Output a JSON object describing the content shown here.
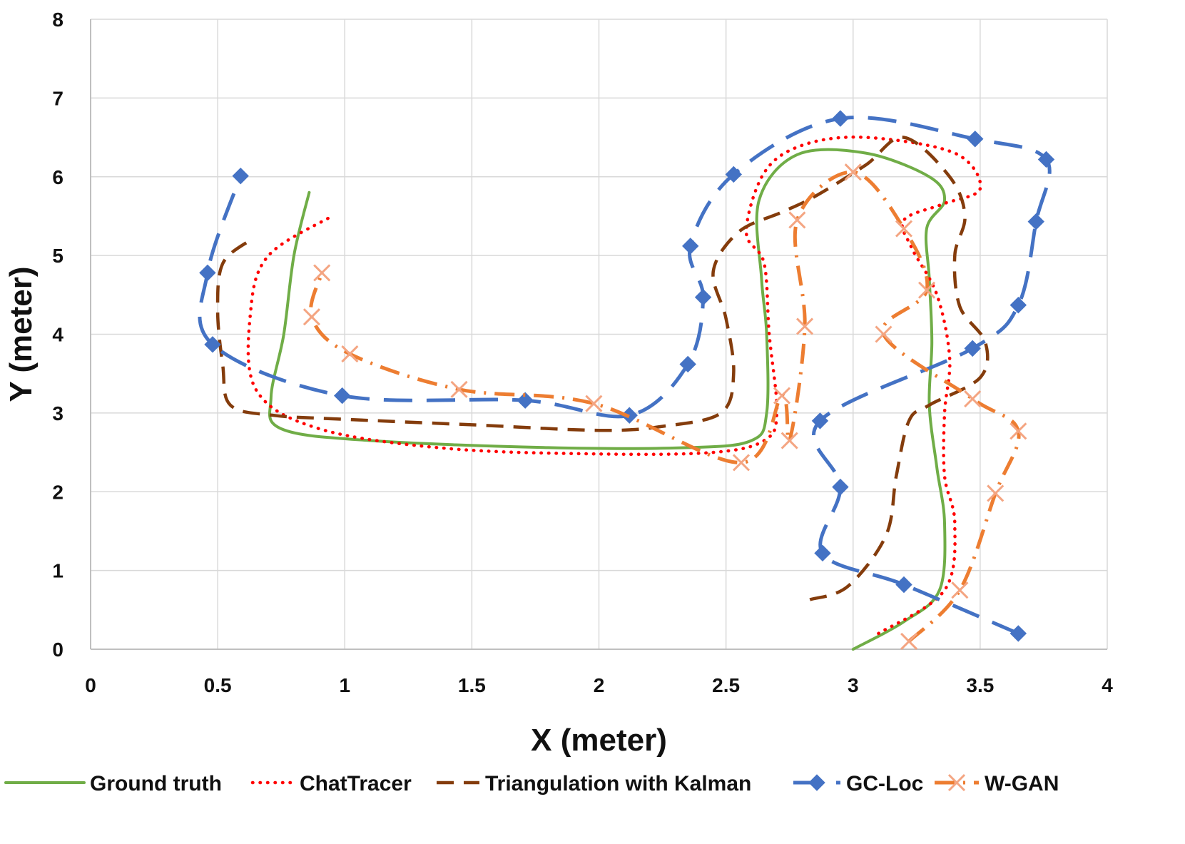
{
  "chart_data": {
    "type": "scatter",
    "title": "",
    "xlabel": "X (meter)",
    "ylabel": "Y (meter)",
    "xlim": [
      0,
      4
    ],
    "ylim": [
      0,
      8
    ],
    "x_ticks": [
      "0",
      "0.5",
      "1",
      "1.5",
      "2",
      "2.5",
      "3",
      "3.5",
      "4"
    ],
    "y_ticks": [
      "0",
      "1",
      "2",
      "3",
      "4",
      "5",
      "6",
      "7",
      "8"
    ],
    "grid": true,
    "legend_position": "bottom",
    "series": [
      {
        "name": "Ground truth",
        "color": "#70AD47",
        "style": "solid",
        "marker": "none",
        "points": [
          [
            3.0,
            0.0
          ],
          [
            3.2,
            0.35
          ],
          [
            3.34,
            0.75
          ],
          [
            3.36,
            1.6
          ],
          [
            3.33,
            2.3
          ],
          [
            3.3,
            3.1
          ],
          [
            3.31,
            3.9
          ],
          [
            3.3,
            4.7
          ],
          [
            3.29,
            5.35
          ],
          [
            3.36,
            5.7
          ],
          [
            3.3,
            6.0
          ],
          [
            3.05,
            6.3
          ],
          [
            2.78,
            6.28
          ],
          [
            2.63,
            5.7
          ],
          [
            2.64,
            4.7
          ],
          [
            2.66,
            4.0
          ],
          [
            2.66,
            3.0
          ],
          [
            2.6,
            2.65
          ],
          [
            2.35,
            2.56
          ],
          [
            1.8,
            2.56
          ],
          [
            1.1,
            2.65
          ],
          [
            0.75,
            2.8
          ],
          [
            0.71,
            3.2
          ],
          [
            0.76,
            4.0
          ],
          [
            0.8,
            5.0
          ],
          [
            0.86,
            5.8
          ]
        ]
      },
      {
        "name": "ChatTracer",
        "color": "#FF0000",
        "style": "dotted",
        "marker": "none",
        "points": [
          [
            3.1,
            0.2
          ],
          [
            3.36,
            0.75
          ],
          [
            3.4,
            1.6
          ],
          [
            3.36,
            2.2
          ],
          [
            3.36,
            3.0
          ],
          [
            3.38,
            3.7
          ],
          [
            3.33,
            4.5
          ],
          [
            3.23,
            5.1
          ],
          [
            3.2,
            5.45
          ],
          [
            3.35,
            5.65
          ],
          [
            3.5,
            5.85
          ],
          [
            3.4,
            6.3
          ],
          [
            3.05,
            6.5
          ],
          [
            2.8,
            6.4
          ],
          [
            2.65,
            6.05
          ],
          [
            2.58,
            5.3
          ],
          [
            2.65,
            4.9
          ],
          [
            2.67,
            4.0
          ],
          [
            2.7,
            3.0
          ],
          [
            2.65,
            2.65
          ],
          [
            2.45,
            2.5
          ],
          [
            2.0,
            2.48
          ],
          [
            1.4,
            2.55
          ],
          [
            0.9,
            2.8
          ],
          [
            0.65,
            3.3
          ],
          [
            0.63,
            4.3
          ],
          [
            0.7,
            5.0
          ],
          [
            0.95,
            5.5
          ]
        ]
      },
      {
        "name": "Triangulation with Kalman",
        "color": "#843C0C",
        "style": "dashed",
        "marker": "none",
        "points": [
          [
            2.83,
            0.63
          ],
          [
            2.98,
            0.8
          ],
          [
            3.13,
            1.45
          ],
          [
            3.17,
            2.2
          ],
          [
            3.22,
            2.9
          ],
          [
            3.3,
            3.1
          ],
          [
            3.5,
            3.45
          ],
          [
            3.52,
            3.9
          ],
          [
            3.42,
            4.35
          ],
          [
            3.4,
            5.0
          ],
          [
            3.44,
            5.5
          ],
          [
            3.38,
            6.0
          ],
          [
            3.2,
            6.5
          ],
          [
            3.05,
            6.15
          ],
          [
            2.85,
            5.75
          ],
          [
            2.72,
            5.55
          ],
          [
            2.55,
            5.3
          ],
          [
            2.45,
            4.8
          ],
          [
            2.5,
            4.2
          ],
          [
            2.53,
            3.5
          ],
          [
            2.48,
            3.0
          ],
          [
            2.25,
            2.83
          ],
          [
            2.0,
            2.78
          ],
          [
            1.5,
            2.85
          ],
          [
            1.0,
            2.92
          ],
          [
            0.72,
            2.97
          ],
          [
            0.55,
            3.1
          ],
          [
            0.52,
            3.6
          ],
          [
            0.5,
            4.3
          ],
          [
            0.52,
            4.9
          ],
          [
            0.63,
            5.2
          ]
        ]
      },
      {
        "name": "GC-Loc",
        "color": "#4472C4",
        "style": "longdash",
        "marker": "diamond",
        "points": [
          [
            3.65,
            0.2
          ],
          [
            3.2,
            0.82
          ],
          [
            2.88,
            1.22
          ],
          [
            2.95,
            2.06
          ],
          [
            2.87,
            2.9
          ],
          [
            3.47,
            3.82
          ],
          [
            3.65,
            4.37
          ],
          [
            3.72,
            5.43
          ],
          [
            3.76,
            6.22
          ],
          [
            3.48,
            6.48
          ],
          [
            2.95,
            6.74
          ],
          [
            2.53,
            6.03
          ],
          [
            2.36,
            5.12
          ],
          [
            2.41,
            4.47
          ],
          [
            2.35,
            3.62
          ],
          [
            2.12,
            2.97
          ],
          [
            1.71,
            3.16
          ],
          [
            0.99,
            3.22
          ],
          [
            0.48,
            3.87
          ],
          [
            0.46,
            4.78
          ],
          [
            0.59,
            6.01
          ]
        ]
      },
      {
        "name": "W-GAN",
        "color": "#ED7D31",
        "style": "dashdot",
        "marker": "x",
        "points": [
          [
            3.22,
            0.1
          ],
          [
            3.42,
            0.75
          ],
          [
            3.56,
            1.98
          ],
          [
            3.65,
            2.77
          ],
          [
            3.47,
            3.18
          ],
          [
            3.12,
            4.0
          ],
          [
            3.29,
            4.56
          ],
          [
            3.2,
            5.34
          ],
          [
            3.0,
            6.06
          ],
          [
            2.78,
            5.45
          ],
          [
            2.81,
            4.1
          ],
          [
            2.75,
            2.65
          ],
          [
            2.72,
            3.22
          ],
          [
            2.56,
            2.37
          ],
          [
            1.98,
            3.12
          ],
          [
            1.45,
            3.3
          ],
          [
            1.02,
            3.75
          ],
          [
            0.87,
            4.22
          ],
          [
            0.91,
            4.78
          ]
        ]
      }
    ]
  }
}
